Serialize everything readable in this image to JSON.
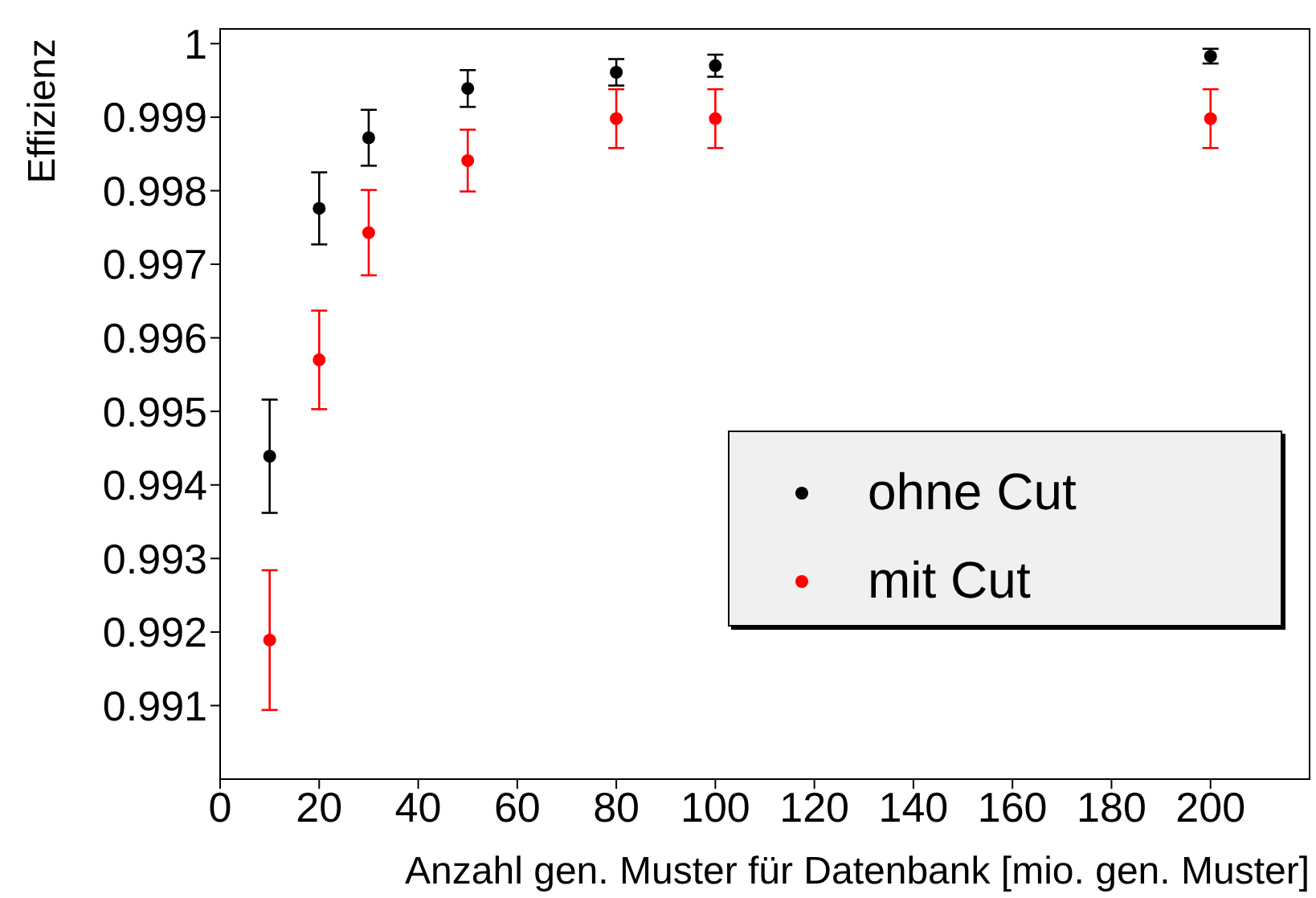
{
  "chart_data": {
    "type": "scatter",
    "xlabel": "Anzahl gen. Muster für Datenbank [mio. gen. Muster]",
    "ylabel": "Effizienz",
    "xlim": [
      0,
      220
    ],
    "xticks": [
      0,
      20,
      40,
      60,
      80,
      100,
      120,
      140,
      160,
      180,
      200
    ],
    "ylim": [
      0.99,
      1.0002
    ],
    "yticks": [
      0.991,
      0.992,
      0.993,
      0.994,
      0.995,
      0.996,
      0.997,
      0.998,
      0.999,
      1
    ],
    "x": [
      10,
      20,
      30,
      50,
      80,
      100,
      200
    ],
    "series": [
      {
        "name": "ohne Cut",
        "color": "#000000",
        "values": [
          0.99439,
          0.99776,
          0.99872,
          0.99939,
          0.99961,
          0.9997,
          0.99983
        ],
        "errors": [
          0.00077,
          0.00049,
          0.00038,
          0.00025,
          0.00018,
          0.00015,
          0.0001
        ]
      },
      {
        "name": "mit Cut",
        "color": "#ff0000",
        "values": [
          0.99189,
          0.9957,
          0.99743,
          0.99841,
          0.99898,
          0.99898,
          0.99898
        ],
        "errors": [
          0.00095,
          0.00067,
          0.00058,
          0.00042,
          0.0004,
          0.0004,
          0.0004
        ]
      }
    ],
    "legend": "bottom right",
    "marker": "circle",
    "grid": false
  }
}
